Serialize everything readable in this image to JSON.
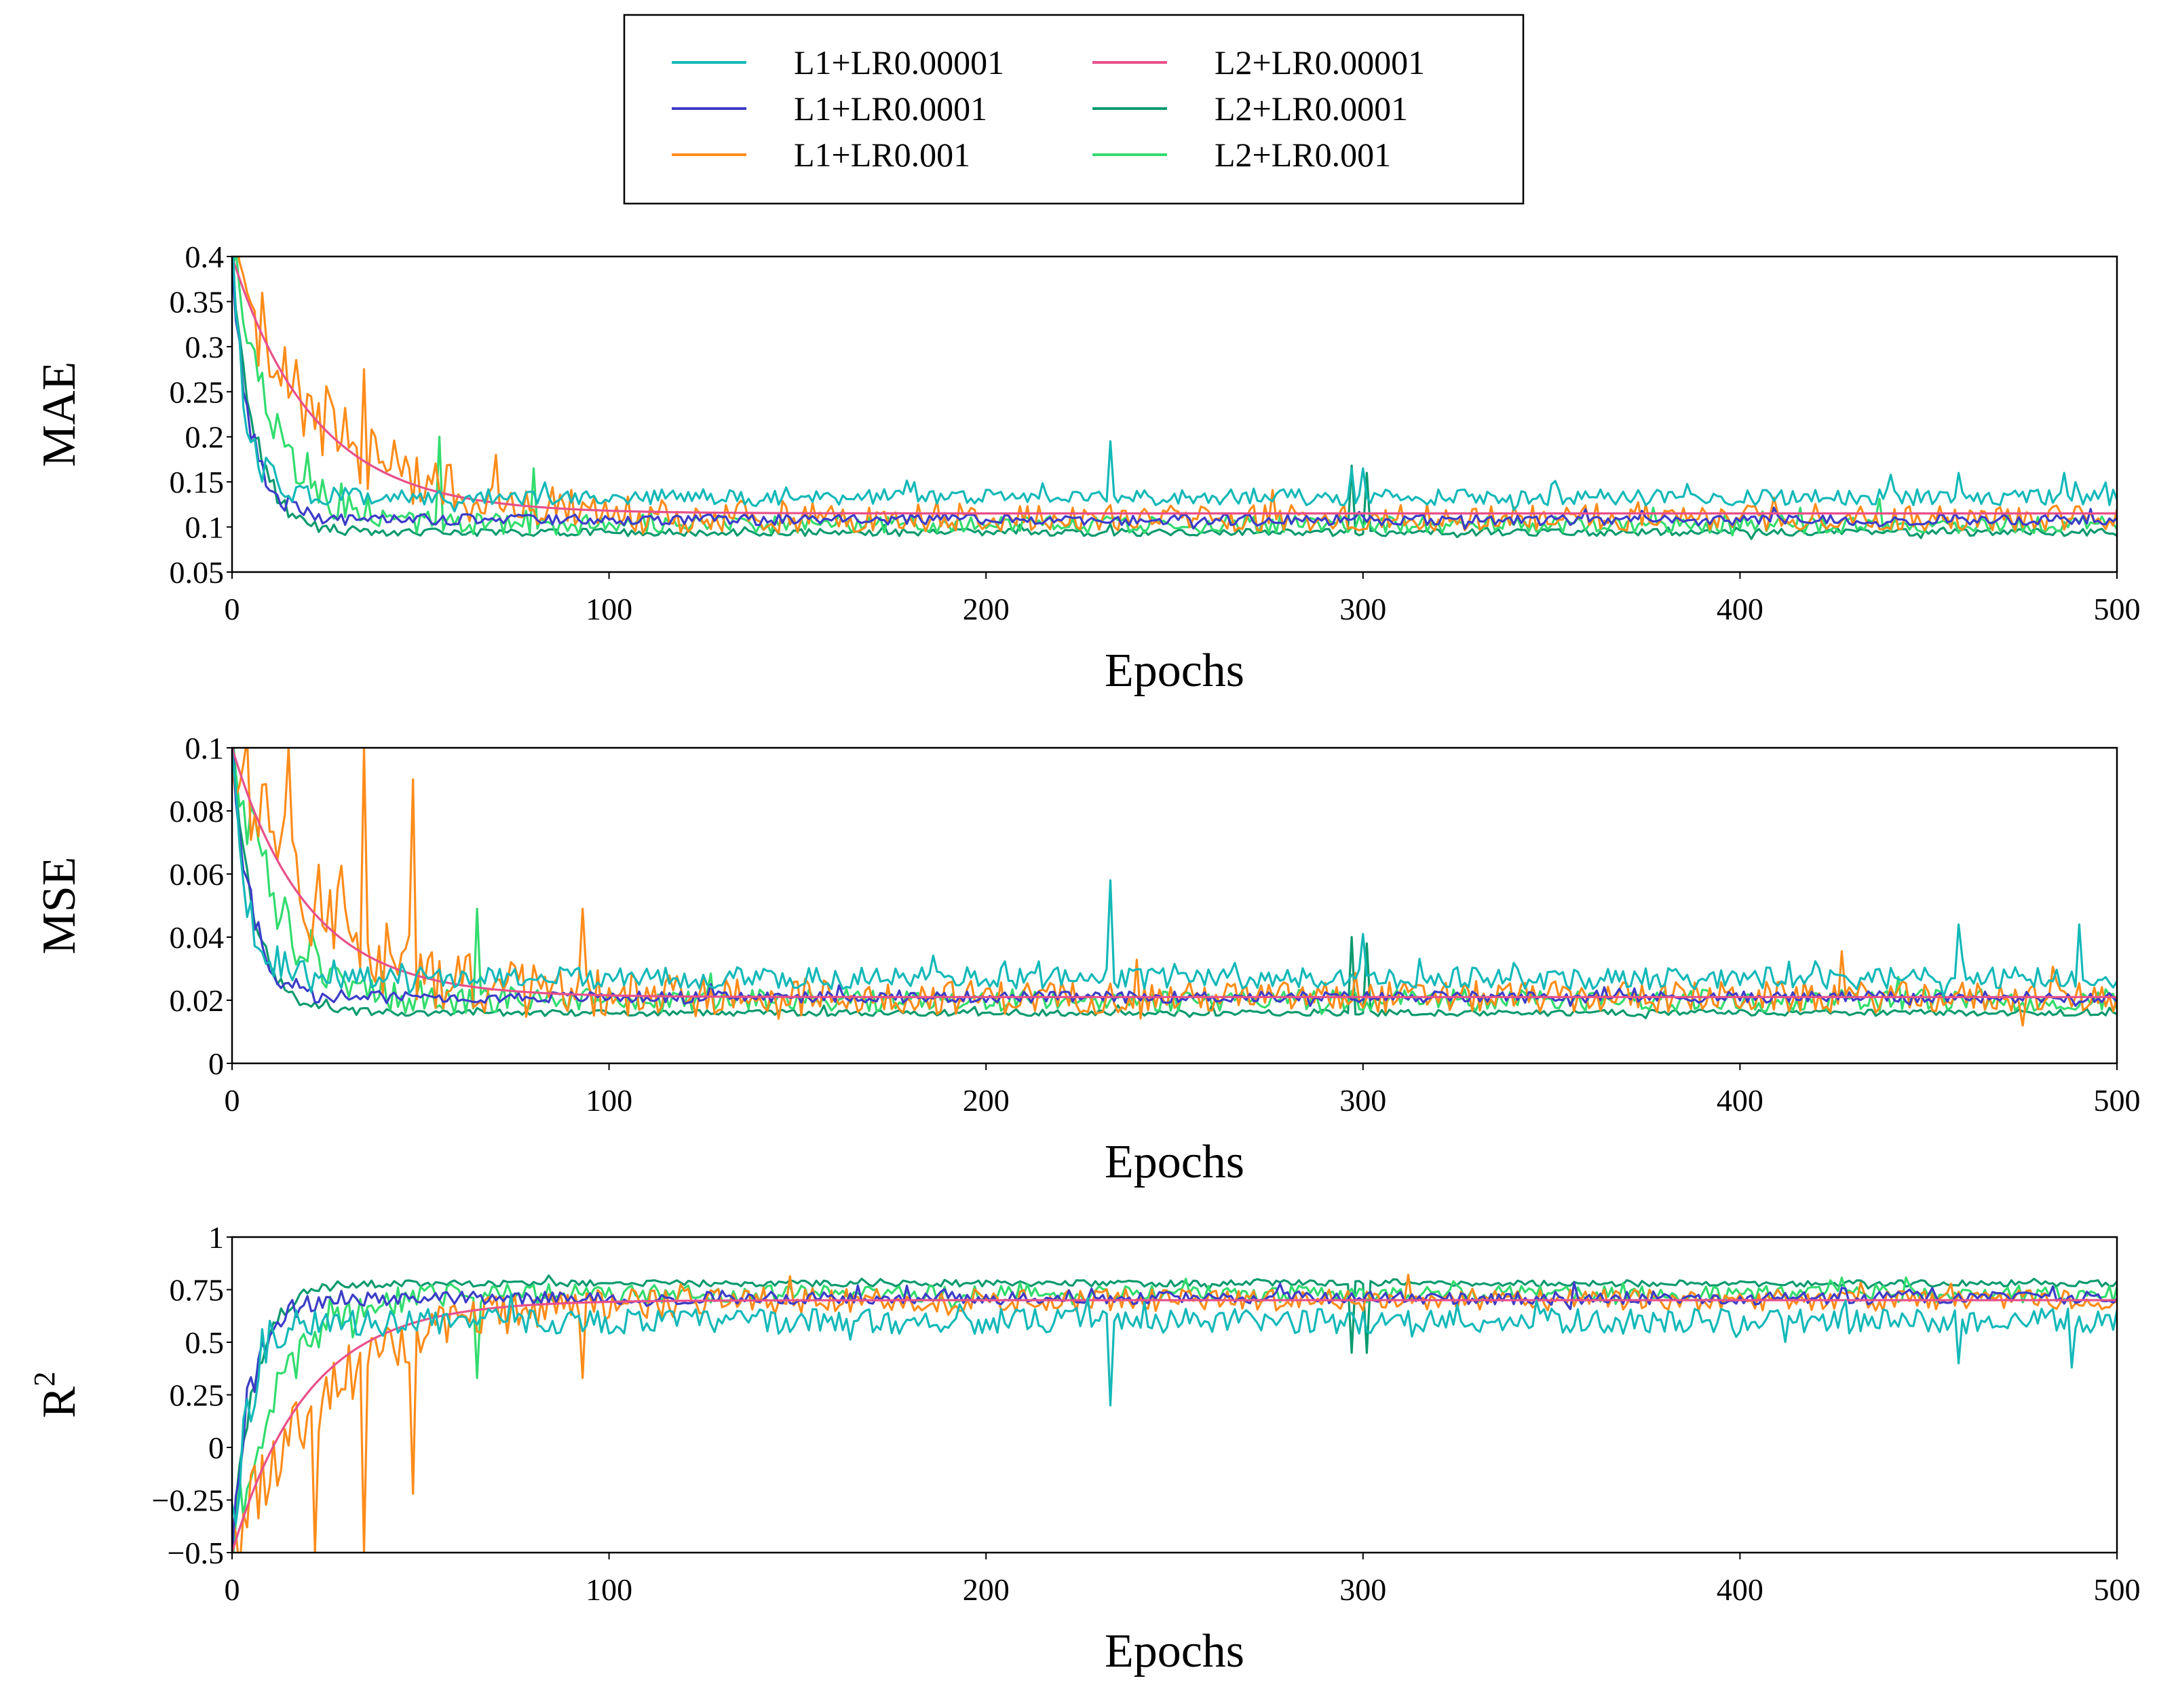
{
  "legend": {
    "entries": [
      {
        "key": "L1_1e5",
        "label": "L1+LR0.00001",
        "color": "#14b8b8"
      },
      {
        "key": "L1_1e4",
        "label": "L1+LR0.0001",
        "color": "#3c3cc8"
      },
      {
        "key": "L1_1e3",
        "label": "L1+LR0.001",
        "color": "#ff8c1a"
      },
      {
        "key": "L2_1e5",
        "label": "L2+LR0.00001",
        "color": "#e8508a"
      },
      {
        "key": "L2_1e4",
        "label": "L2+LR0.0001",
        "color": "#0a9a6e"
      },
      {
        "key": "L2_1e3",
        "label": "L2+LR0.001",
        "color": "#32dc6e"
      }
    ]
  },
  "chart_data": [
    {
      "type": "line",
      "metric": "MAE",
      "ylabel": "MAE",
      "xlabel": "Epochs",
      "xlim": [
        0,
        500
      ],
      "ylim": [
        0.05,
        0.4
      ],
      "xticks": [
        0,
        100,
        200,
        300,
        400,
        500
      ],
      "yticks": [
        0.05,
        0.1,
        0.15,
        0.2,
        0.25,
        0.3,
        0.35,
        0.4
      ],
      "ytick_labels": [
        "0.05",
        "0.1",
        "0.15",
        "0.2",
        "0.25",
        "0.3",
        "0.35",
        "0.4"
      ],
      "grid": "horizontal-top-only",
      "series_params": {
        "L1_1e5": {
          "start": 0.4,
          "end": 0.133,
          "tau": 4,
          "noise": 0.009,
          "seed": 11,
          "spikes": [
            [
              233,
              0.195
            ],
            [
              297,
              0.165
            ],
            [
              300,
              0.165
            ],
            [
              458,
              0.16
            ],
            [
              486,
              0.16
            ]
          ]
        },
        "L1_1e4": {
          "start": 0.4,
          "end": 0.108,
          "tau": 5,
          "noise": 0.006,
          "seed": 12,
          "spikes": []
        },
        "L1_1e3": {
          "start": 0.4,
          "end": 0.11,
          "tau": 25,
          "noise": 0.014,
          "seed": 13,
          "spikes": [
            [
              4,
              0.36
            ],
            [
              35,
              0.275
            ],
            [
              70,
              0.18
            ]
          ]
        },
        "L2_1e5": {
          "start": 0.4,
          "end": 0.115,
          "tau": 22,
          "noise": 0.0,
          "seed": 14,
          "spikes": []
        },
        "L2_1e4": {
          "start": 0.4,
          "end": 0.094,
          "tau": 6,
          "noise": 0.004,
          "seed": 15,
          "spikes": [
            [
              297,
              0.168
            ],
            [
              301,
              0.16
            ]
          ]
        },
        "L2_1e3": {
          "start": 0.4,
          "end": 0.103,
          "tau": 12,
          "noise": 0.01,
          "seed": 16,
          "spikes": [
            [
              55,
              0.2
            ],
            [
              80,
              0.165
            ]
          ]
        }
      }
    },
    {
      "type": "line",
      "metric": "MSE",
      "ylabel": "MSE",
      "xlabel": "Epochs",
      "xlim": [
        0,
        500
      ],
      "ylim": [
        0,
        0.1
      ],
      "xticks": [
        0,
        100,
        200,
        300,
        400,
        500
      ],
      "yticks": [
        0,
        0.02,
        0.04,
        0.06,
        0.08,
        0.1
      ],
      "ytick_labels": [
        "0",
        "0.02",
        "0.04",
        "0.06",
        "0.08",
        "0.1"
      ],
      "grid": "horizontal-top-only",
      "series_params": {
        "L1_1e5": {
          "start": 0.1,
          "end": 0.027,
          "tau": 4,
          "noise": 0.0035,
          "seed": 21,
          "spikes": [
            [
              233,
              0.058
            ],
            [
              300,
              0.041
            ],
            [
              458,
              0.044
            ],
            [
              490,
              0.044
            ]
          ]
        },
        "L1_1e4": {
          "start": 0.1,
          "end": 0.021,
          "tau": 5,
          "noise": 0.0018,
          "seed": 22,
          "spikes": []
        },
        "L1_1e3": {
          "start": 0.1,
          "end": 0.021,
          "tau": 22,
          "noise": 0.005,
          "seed": 23,
          "spikes": [
            [
              15,
              0.1
            ],
            [
              35,
              0.1
            ],
            [
              48,
              0.09
            ],
            [
              93,
              0.049
            ]
          ]
        },
        "L2_1e5": {
          "start": 0.1,
          "end": 0.021,
          "tau": 20,
          "noise": 0.0,
          "seed": 24,
          "spikes": []
        },
        "L2_1e4": {
          "start": 0.1,
          "end": 0.016,
          "tau": 6,
          "noise": 0.001,
          "seed": 25,
          "spikes": [
            [
              297,
              0.04
            ],
            [
              301,
              0.038
            ]
          ]
        },
        "L2_1e3": {
          "start": 0.1,
          "end": 0.02,
          "tau": 12,
          "noise": 0.0035,
          "seed": 26,
          "spikes": [
            [
              65,
              0.049
            ]
          ]
        }
      }
    },
    {
      "type": "line",
      "metric": "R2",
      "ylabel": "R",
      "ylabel_superscript": "2",
      "xlabel": "Epochs",
      "xlim": [
        0,
        500
      ],
      "ylim": [
        -0.5,
        1
      ],
      "xticks": [
        0,
        100,
        200,
        300,
        400,
        500
      ],
      "yticks": [
        -0.5,
        -0.25,
        0,
        0.25,
        0.5,
        0.75,
        1
      ],
      "ytick_labels": [
        "−0.5",
        "−0.25",
        "0",
        "0.25",
        "0.5",
        "0.75",
        "1"
      ],
      "grid": "horizontal-top-only",
      "series_params": {
        "L1_1e5": {
          "start": -0.5,
          "end": 0.6,
          "tau": 4,
          "noise": 0.06,
          "seed": 31,
          "spikes": [
            [
              233,
              0.2
            ],
            [
              458,
              0.4
            ],
            [
              488,
              0.38
            ]
          ]
        },
        "L1_1e4": {
          "start": -0.5,
          "end": 0.71,
          "tau": 5,
          "noise": 0.03,
          "seed": 32,
          "spikes": []
        },
        "L1_1e3": {
          "start": -0.5,
          "end": 0.7,
          "tau": 25,
          "noise": 0.05,
          "seed": 33,
          "spikes": [
            [
              22,
              -0.5
            ],
            [
              35,
              -0.5
            ],
            [
              48,
              -0.22
            ],
            [
              93,
              0.33
            ]
          ]
        },
        "L2_1e5": {
          "start": -0.5,
          "end": 0.7,
          "tau": 20,
          "noise": 0.0,
          "seed": 34,
          "spikes": []
        },
        "L2_1e4": {
          "start": -0.5,
          "end": 0.78,
          "tau": 6,
          "noise": 0.015,
          "seed": 35,
          "spikes": [
            [
              297,
              0.45
            ],
            [
              301,
              0.45
            ]
          ]
        },
        "L2_1e3": {
          "start": -0.5,
          "end": 0.73,
          "tau": 12,
          "noise": 0.04,
          "seed": 36,
          "spikes": [
            [
              65,
              0.33
            ]
          ]
        }
      }
    }
  ]
}
